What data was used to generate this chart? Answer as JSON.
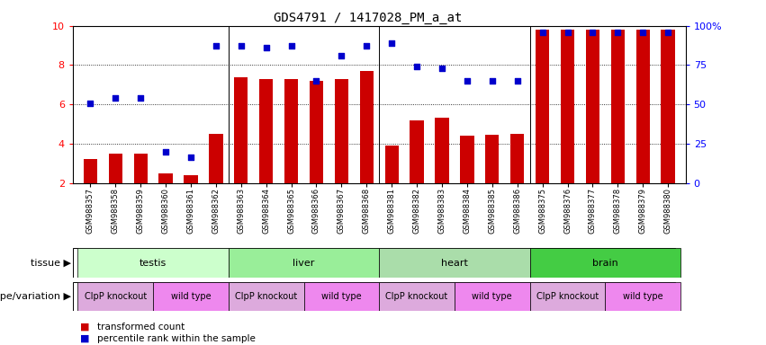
{
  "title": "GDS4791 / 1417028_PM_a_at",
  "samples": [
    "GSM988357",
    "GSM988358",
    "GSM988359",
    "GSM988360",
    "GSM988361",
    "GSM988362",
    "GSM988363",
    "GSM988364",
    "GSM988365",
    "GSM988366",
    "GSM988367",
    "GSM988368",
    "GSM988381",
    "GSM988382",
    "GSM988383",
    "GSM988384",
    "GSM988385",
    "GSM988386",
    "GSM988375",
    "GSM988376",
    "GSM988377",
    "GSM988378",
    "GSM988379",
    "GSM988380"
  ],
  "bar_values": [
    3.2,
    3.5,
    3.5,
    2.5,
    2.4,
    4.5,
    7.4,
    7.3,
    7.3,
    7.2,
    7.3,
    7.7,
    3.9,
    5.2,
    5.3,
    4.4,
    4.45,
    4.5,
    9.8,
    9.8,
    9.8,
    9.8,
    9.8,
    9.8
  ],
  "dot_values": [
    6.05,
    6.35,
    6.35,
    3.6,
    3.3,
    9.0,
    9.0,
    8.9,
    9.0,
    7.2,
    8.5,
    9.0,
    9.1,
    7.95,
    7.85,
    7.2,
    7.2,
    7.2,
    9.65,
    9.65,
    9.65,
    9.65,
    9.65,
    9.65
  ],
  "bar_color": "#cc0000",
  "dot_color": "#0000cc",
  "ylim_left": [
    2,
    10
  ],
  "yticks_left": [
    2,
    4,
    6,
    8,
    10
  ],
  "ytick_labels_right": [
    "0",
    "25",
    "50",
    "75",
    "100%"
  ],
  "yticks_right_pos": [
    2,
    4,
    6,
    8,
    10
  ],
  "grid_values": [
    4,
    6,
    8
  ],
  "tissues": [
    {
      "label": "testis",
      "start": 0,
      "end": 6,
      "color": "#ccffcc"
    },
    {
      "label": "liver",
      "start": 6,
      "end": 12,
      "color": "#99ee99"
    },
    {
      "label": "heart",
      "start": 12,
      "end": 18,
      "color": "#aaddaa"
    },
    {
      "label": "brain",
      "start": 18,
      "end": 24,
      "color": "#44cc44"
    }
  ],
  "genotypes": [
    {
      "label": "ClpP knockout",
      "start": 0,
      "end": 3,
      "color": "#ddaadd"
    },
    {
      "label": "wild type",
      "start": 3,
      "end": 6,
      "color": "#ee88ee"
    },
    {
      "label": "ClpP knockout",
      "start": 6,
      "end": 9,
      "color": "#ddaadd"
    },
    {
      "label": "wild type",
      "start": 9,
      "end": 12,
      "color": "#ee88ee"
    },
    {
      "label": "ClpP knockout",
      "start": 12,
      "end": 15,
      "color": "#ddaadd"
    },
    {
      "label": "wild type",
      "start": 15,
      "end": 18,
      "color": "#ee88ee"
    },
    {
      "label": "ClpP knockout",
      "start": 18,
      "end": 21,
      "color": "#ddaadd"
    },
    {
      "label": "wild type",
      "start": 21,
      "end": 24,
      "color": "#ee88ee"
    }
  ],
  "tissue_label": "tissue",
  "genotype_label": "genotype/variation",
  "legend_bar_label": "transformed count",
  "legend_dot_label": "percentile rank within the sample"
}
